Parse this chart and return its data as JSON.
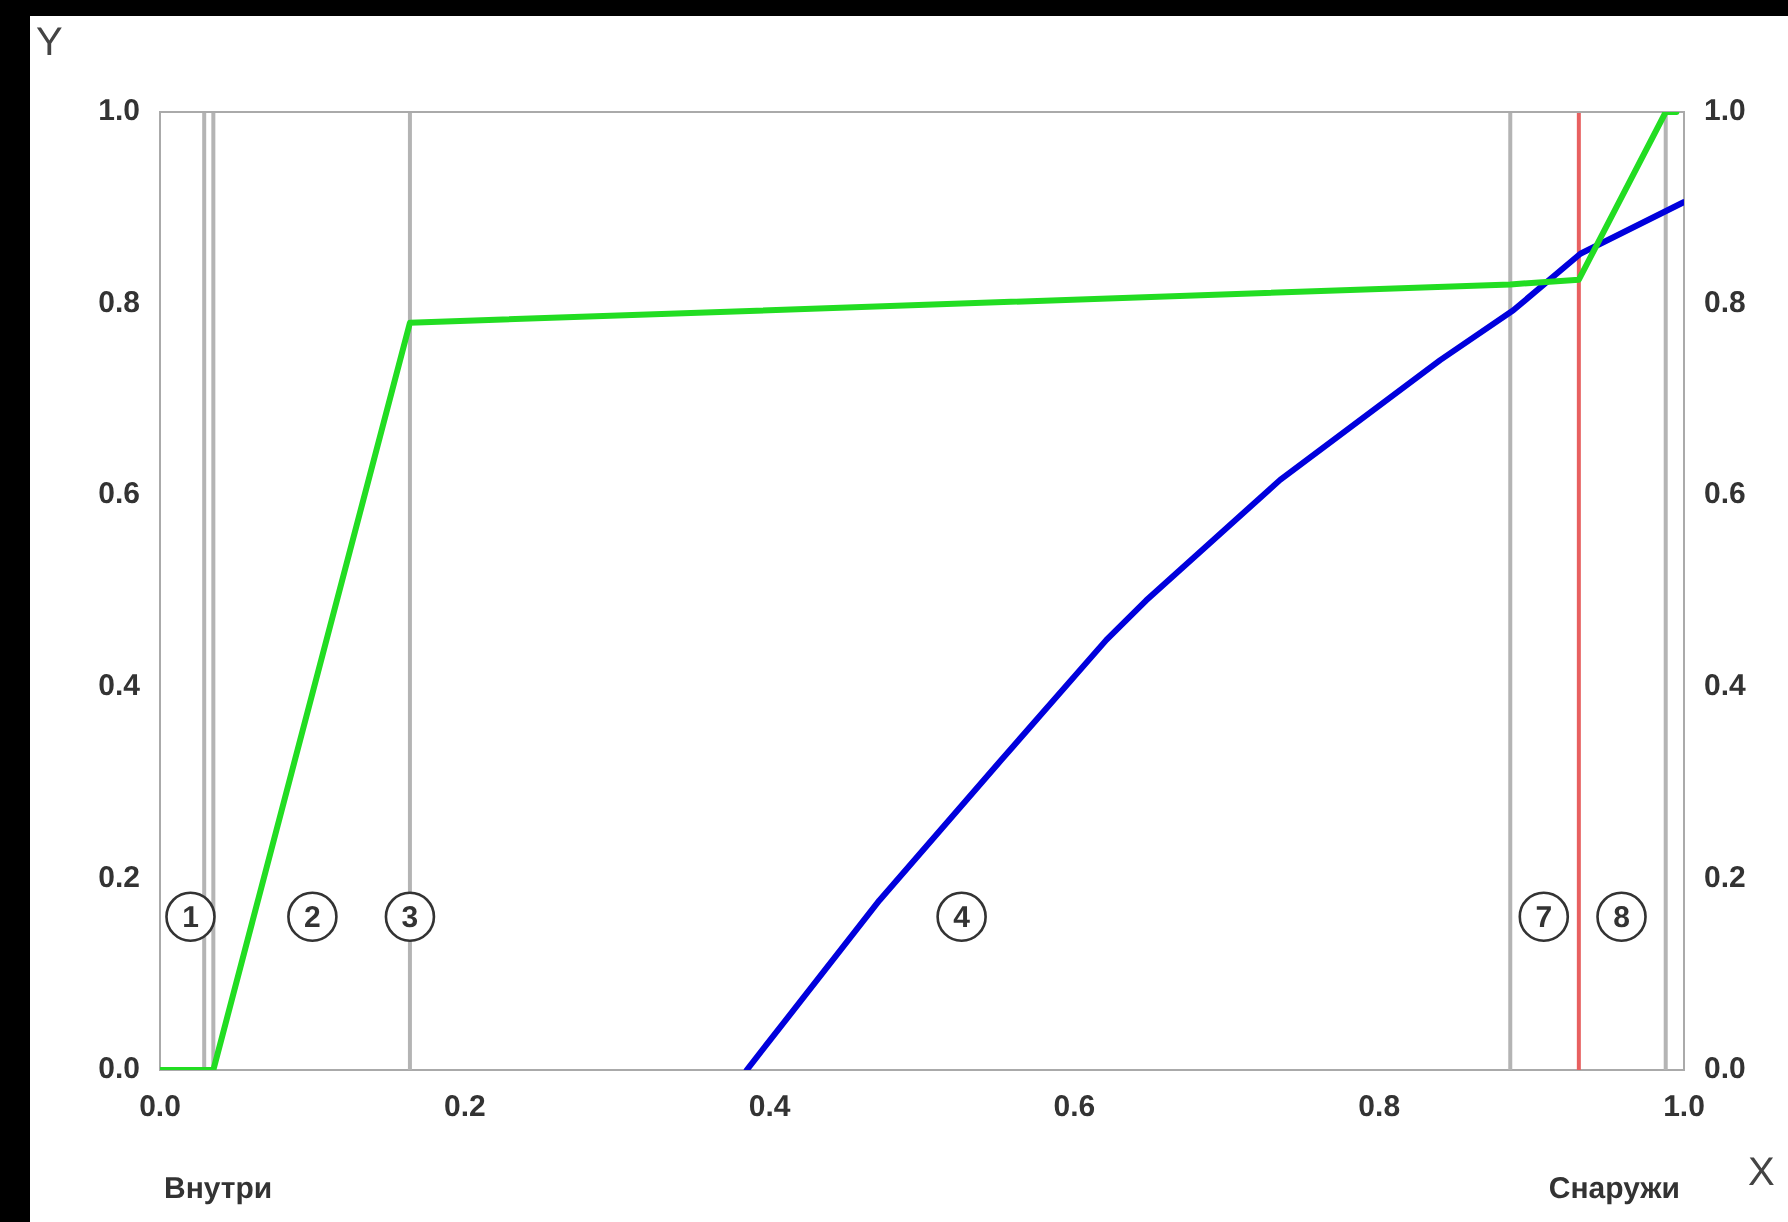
{
  "chart_data": {
    "type": "line",
    "xlabel": "X",
    "ylabel": "Y",
    "xlim": [
      0,
      1
    ],
    "xticks": [
      {
        "value": 0,
        "label": "0.0"
      },
      0.2,
      0.4,
      0.6,
      0.8,
      {
        "value": 1,
        "label": "1.0"
      }
    ],
    "ylim": [
      0,
      1
    ],
    "yticks": [
      {
        "value": 0,
        "label": "0.0"
      },
      0.2,
      0.4,
      0.6,
      0.8,
      {
        "value": 1,
        "label": "1.0"
      }
    ],
    "y2lim": [
      0,
      1
    ],
    "y2ticks": [
      {
        "value": 0,
        "label": "0.0"
      },
      0.2,
      0.4,
      0.6,
      0.8,
      {
        "value": 1,
        "label": "1.0"
      }
    ],
    "grid": false,
    "legend": false,
    "marker": "none",
    "line_style": "solid",
    "series": [
      {
        "color": "#22dd22",
        "x": [
          0,
          0.035,
          0.164,
          0.886,
          0.931,
          0.988,
          0.995
        ],
        "values": [
          0,
          0,
          0.78,
          0.82,
          0.825,
          1.0,
          1.0
        ]
      },
      {
        "color": "#0000dd",
        "x": [
          0.385,
          0.472,
          0.55,
          0.621,
          0.647,
          0.735,
          0.84,
          0.888,
          0.932,
          1.0
        ],
        "values": [
          0,
          0.177,
          0.32,
          0.449,
          0.49,
          0.616,
          0.741,
          0.793,
          0.852,
          0.906
        ]
      }
    ],
    "ref_lines": [
      {
        "axis": "x",
        "value": 0.029,
        "color": "#b4b4b4"
      },
      {
        "axis": "x",
        "value": 0.035,
        "color": "#b4b4b4"
      },
      {
        "axis": "x",
        "value": 0.164,
        "color": "#b4b4b4"
      },
      {
        "axis": "x",
        "value": 0.886,
        "color": "#b4b4b4"
      },
      {
        "axis": "x",
        "value": 0.988,
        "color": "#b4b4b4"
      },
      {
        "axis": "x",
        "value": 0.931,
        "color": "#e86060"
      }
    ],
    "annotations": [
      {
        "text": "1",
        "x": 0.02,
        "y": 0.16
      },
      {
        "text": "2",
        "x": 0.1,
        "y": 0.16
      },
      {
        "text": "3",
        "x": 0.164,
        "y": 0.16
      },
      {
        "text": "4",
        "x": 0.526,
        "y": 0.16
      },
      {
        "text": "7",
        "x": 0.908,
        "y": 0.16
      },
      {
        "text": "8",
        "x": 0.959,
        "y": 0.16
      },
      "Внутри",
      "Снаружи"
    ]
  }
}
